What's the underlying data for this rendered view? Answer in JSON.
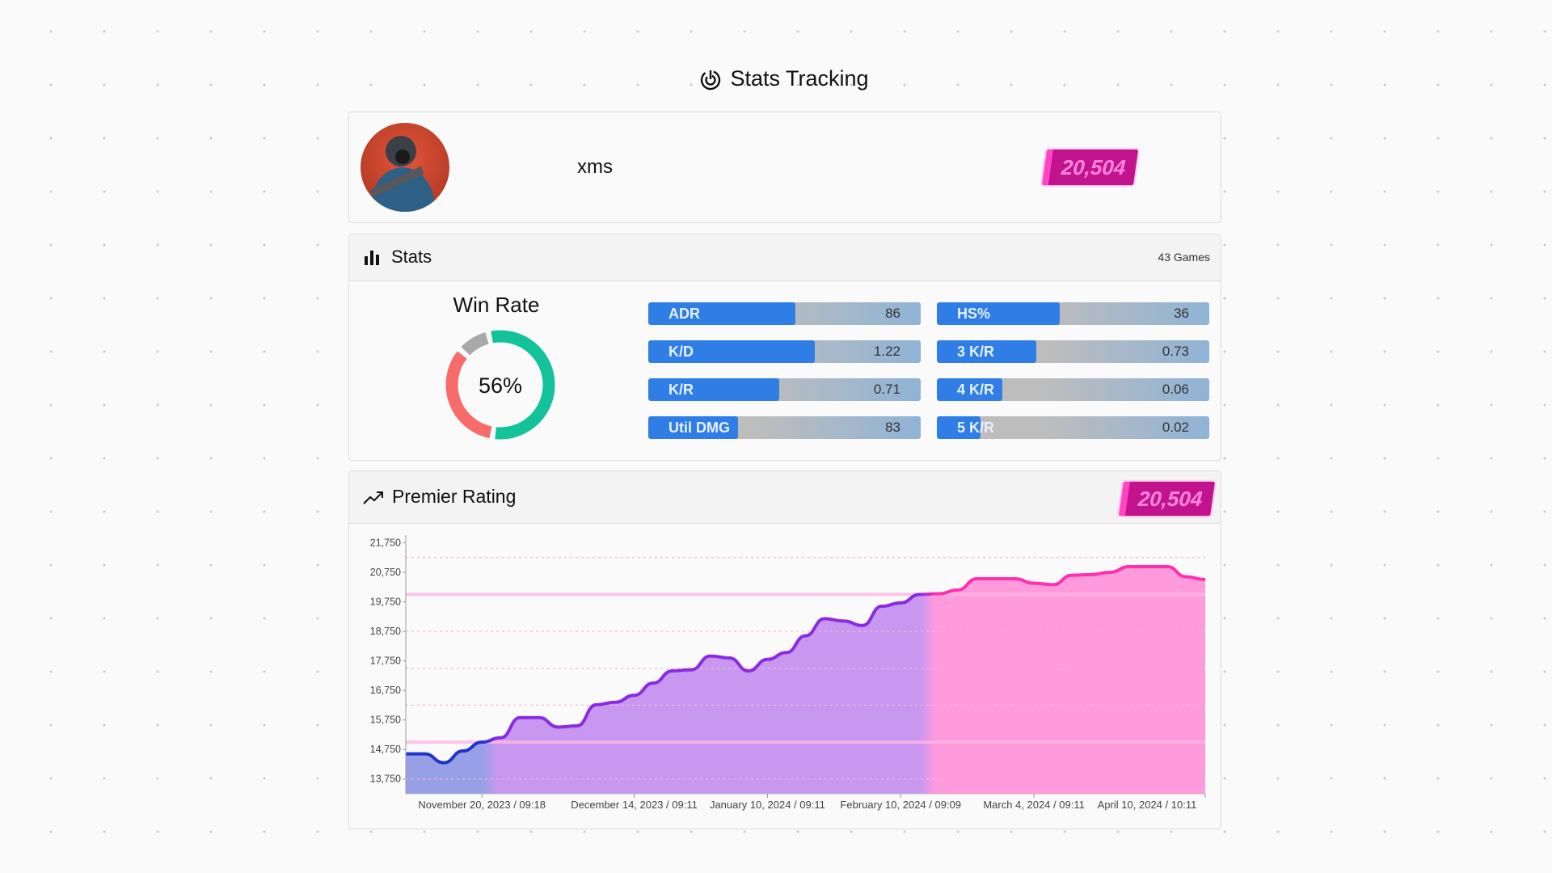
{
  "header": {
    "title": "Stats Tracking",
    "icon": "target-icon"
  },
  "profile": {
    "name": "xms",
    "rating": "20,504",
    "avatar": "avatar-gas-mask-soldier"
  },
  "stats": {
    "title": "Stats",
    "games": "43 Games",
    "win_rate": {
      "label": "Win Rate",
      "value": "56%",
      "segments": {
        "win": 0.56,
        "loss": 0.34,
        "other": 0.1
      },
      "colors": {
        "win": "#13c29a",
        "loss": "#f86b6b",
        "other": "#a8a8a8"
      }
    },
    "left": [
      {
        "label": "ADR",
        "value": "86",
        "fill": 0.54
      },
      {
        "label": "K/D",
        "value": "1.22",
        "fill": 0.61
      },
      {
        "label": "K/R",
        "value": "0.71",
        "fill": 0.48
      },
      {
        "label": "Util DMG",
        "value": "83",
        "fill": 0.33
      }
    ],
    "right": [
      {
        "label": "HS%",
        "value": "36",
        "fill": 0.45
      },
      {
        "label": "3 K/R",
        "value": "0.73",
        "fill": 0.365
      },
      {
        "label": "4 K/R",
        "value": "0.06",
        "fill": 0.24
      },
      {
        "label": "5 K/R",
        "value": "0.02",
        "fill": 0.16
      }
    ]
  },
  "premier": {
    "title": "Premier Rating",
    "rating": "20,504"
  },
  "chart_data": {
    "type": "area",
    "ylim": [
      13250,
      21900
    ],
    "y_ticks": [
      "21,750",
      "20,750",
      "19,750",
      "18,750",
      "17,750",
      "16,750",
      "15,750",
      "14,750",
      "13,750"
    ],
    "y_tick_values": [
      21750,
      20750,
      19750,
      18750,
      17750,
      16750,
      15750,
      14750,
      13750
    ],
    "x_ticks": [
      {
        "index": 4,
        "label": "November 20, 2023 / 09:18"
      },
      {
        "index": 12,
        "label": "December 14, 2023 / 09:11"
      },
      {
        "index": 19,
        "label": "January 10, 2024 / 09:11"
      },
      {
        "index": 26,
        "label": "February 10, 2024 / 09:09"
      },
      {
        "index": 33,
        "label": "March 4, 2024 / 09:11"
      },
      {
        "index": 42,
        "label": "April 10, 2024 / 10:11"
      }
    ],
    "values": [
      14600,
      14600,
      14300,
      14700,
      15000,
      15150,
      15830,
      15830,
      15510,
      15550,
      16264,
      16350,
      16585,
      17000,
      17410,
      17450,
      17915,
      17850,
      17410,
      17800,
      18035,
      18600,
      19180,
      19100,
      18950,
      19600,
      19713,
      20000,
      20025,
      20150,
      20530,
      20530,
      20530,
      20380,
      20330,
      20650,
      20670,
      20750,
      20943,
      20943,
      20943,
      20600,
      20504
    ],
    "thresholds": [
      15000,
      20000
    ],
    "dashed_lines": [
      21250,
      18750,
      17500,
      16250,
      13750
    ],
    "colors": {
      "low": "#2233cc",
      "mid": "#8a2be2",
      "high": "#ff2fb0"
    },
    "grid": false
  }
}
